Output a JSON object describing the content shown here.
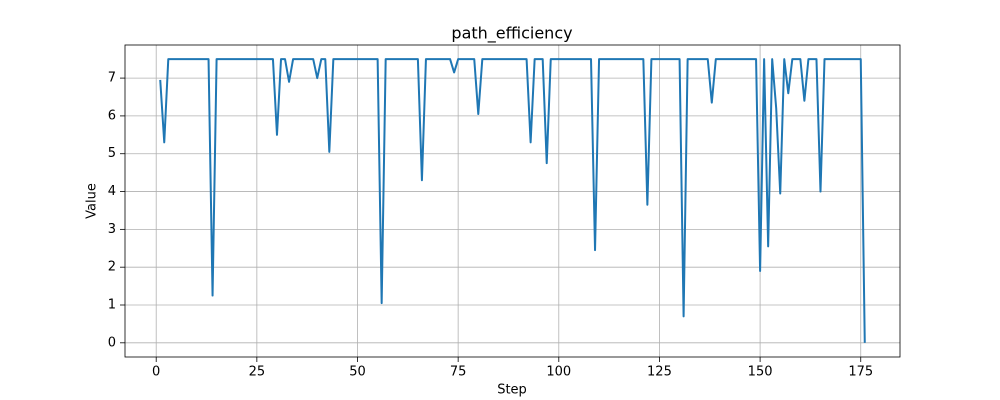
{
  "chart_data": {
    "type": "line",
    "title": "path_efficiency",
    "x_label": "Step",
    "y_label": "Value",
    "x": [
      1,
      2,
      3,
      4,
      5,
      6,
      7,
      8,
      9,
      10,
      11,
      12,
      13,
      14,
      15,
      16,
      17,
      18,
      19,
      20,
      21,
      22,
      23,
      24,
      25,
      26,
      27,
      28,
      29,
      30,
      31,
      32,
      33,
      34,
      35,
      36,
      37,
      38,
      39,
      40,
      41,
      42,
      43,
      44,
      45,
      46,
      47,
      48,
      49,
      50,
      51,
      52,
      53,
      54,
      55,
      56,
      57,
      58,
      59,
      60,
      61,
      62,
      63,
      64,
      65,
      66,
      67,
      68,
      69,
      70,
      71,
      72,
      73,
      74,
      75,
      76,
      77,
      78,
      79,
      80,
      81,
      82,
      83,
      84,
      85,
      86,
      87,
      88,
      89,
      90,
      91,
      92,
      93,
      94,
      95,
      96,
      97,
      98,
      99,
      100,
      101,
      102,
      103,
      104,
      105,
      106,
      107,
      108,
      109,
      110,
      111,
      112,
      113,
      114,
      115,
      116,
      117,
      118,
      119,
      120,
      121,
      122,
      123,
      124,
      125,
      126,
      127,
      128,
      129,
      130,
      131,
      132,
      133,
      134,
      135,
      136,
      137,
      138,
      139,
      140,
      141,
      142,
      143,
      144,
      145,
      146,
      147,
      148,
      149,
      150,
      151,
      152,
      153,
      154,
      155,
      156,
      157,
      158,
      159,
      160,
      161,
      162,
      163,
      164,
      165,
      166,
      167,
      168,
      169,
      170,
      171,
      172,
      173,
      174,
      175,
      176
    ],
    "values": [
      6.95,
      5.3,
      7.5,
      7.5,
      7.5,
      7.5,
      7.5,
      7.5,
      7.5,
      7.5,
      7.5,
      7.5,
      7.5,
      1.25,
      7.5,
      7.5,
      7.5,
      7.5,
      7.5,
      7.5,
      7.5,
      7.5,
      7.5,
      7.5,
      7.5,
      7.5,
      7.5,
      7.5,
      7.5,
      5.5,
      7.5,
      7.5,
      6.9,
      7.5,
      7.5,
      7.5,
      7.5,
      7.5,
      7.5,
      7.0,
      7.5,
      7.5,
      5.05,
      7.5,
      7.5,
      7.5,
      7.5,
      7.5,
      7.5,
      7.5,
      7.5,
      7.5,
      7.5,
      7.5,
      7.5,
      1.05,
      7.5,
      7.5,
      7.5,
      7.5,
      7.5,
      7.5,
      7.5,
      7.5,
      7.5,
      4.3,
      7.5,
      7.5,
      7.5,
      7.5,
      7.5,
      7.5,
      7.5,
      7.15,
      7.5,
      7.5,
      7.5,
      7.5,
      7.5,
      6.05,
      7.5,
      7.5,
      7.5,
      7.5,
      7.5,
      7.5,
      7.5,
      7.5,
      7.5,
      7.5,
      7.5,
      7.5,
      5.3,
      7.5,
      7.5,
      7.5,
      4.75,
      7.5,
      7.5,
      7.5,
      7.5,
      7.5,
      7.5,
      7.5,
      7.5,
      7.5,
      7.5,
      7.5,
      2.45,
      7.5,
      7.5,
      7.5,
      7.5,
      7.5,
      7.5,
      7.5,
      7.5,
      7.5,
      7.5,
      7.5,
      7.5,
      3.65,
      7.5,
      7.5,
      7.5,
      7.5,
      7.5,
      7.5,
      7.5,
      7.5,
      0.7,
      7.5,
      7.5,
      7.5,
      7.5,
      7.5,
      7.5,
      6.35,
      7.5,
      7.5,
      7.5,
      7.5,
      7.5,
      7.5,
      7.5,
      7.5,
      7.5,
      7.5,
      7.5,
      1.9,
      7.5,
      2.55,
      7.5,
      6.2,
      3.95,
      7.5,
      6.6,
      7.5,
      7.5,
      7.5,
      6.4,
      7.5,
      7.5,
      7.5,
      4.0,
      7.5,
      7.5,
      7.5,
      7.5,
      7.5,
      7.5,
      7.5,
      7.5,
      7.5,
      7.5,
      0.0
    ],
    "color": "#1f77b4",
    "xlim": [
      -7.75,
      184.75
    ],
    "xticks": [
      0,
      25,
      50,
      75,
      100,
      125,
      150,
      175
    ],
    "ylim": [
      -0.375,
      7.875
    ],
    "yticks": [
      0,
      1,
      2,
      3,
      4,
      5,
      6,
      7
    ],
    "grid": true
  }
}
